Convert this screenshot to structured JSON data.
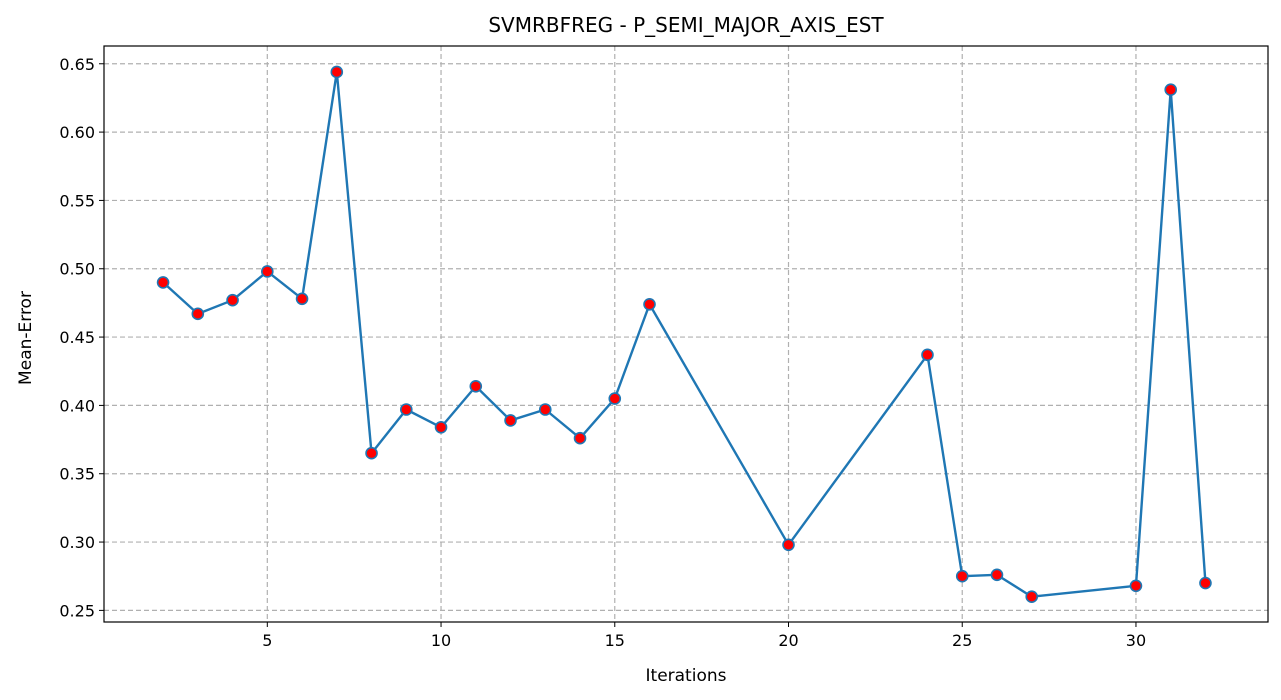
{
  "chart_data": {
    "type": "line",
    "title": "SVMRBFREG - P_SEMI_MAJOR_AXIS_EST",
    "xlabel": "Iterations",
    "ylabel": "Mean-Error",
    "xlim": [
      0.3,
      33.8
    ],
    "ylim": [
      0.2415,
      0.663
    ],
    "xticks": [
      5,
      10,
      15,
      20,
      25,
      30
    ],
    "yticks": [
      0.25,
      0.3,
      0.35,
      0.4,
      0.45,
      0.5,
      0.55,
      0.6,
      0.65
    ],
    "grid": true,
    "colors": {
      "line": "#1f77b4",
      "marker_fill": "#ff0000",
      "marker_edge": "#1f77b4"
    },
    "series": [
      {
        "x": [
          2,
          3,
          4,
          5,
          6,
          7,
          8,
          9,
          10,
          11,
          12,
          13,
          14,
          15,
          16,
          20,
          24,
          25,
          26,
          27,
          30,
          31,
          32
        ],
        "y": [
          0.49,
          0.467,
          0.477,
          0.498,
          0.478,
          0.644,
          0.365,
          0.397,
          0.384,
          0.414,
          0.389,
          0.397,
          0.376,
          0.405,
          0.474,
          0.298,
          0.437,
          0.275,
          0.276,
          0.26,
          0.268,
          0.631,
          0.27
        ]
      }
    ]
  }
}
